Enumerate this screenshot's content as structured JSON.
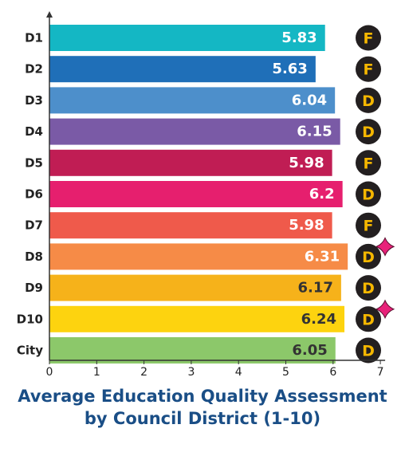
{
  "chart_data": {
    "type": "bar",
    "orientation": "horizontal",
    "title": "Average Education Quality Assessment\nby Council District (1-10)",
    "categories": [
      "D1",
      "D2",
      "D3",
      "D4",
      "D5",
      "D6",
      "D7",
      "D8",
      "D9",
      "D10",
      "City"
    ],
    "values": [
      5.83,
      5.63,
      6.04,
      6.15,
      5.98,
      6.2,
      5.98,
      6.31,
      6.17,
      6.24,
      6.05
    ],
    "value_labels": [
      "5.83",
      "5.63",
      "6.04",
      "6.15",
      "5.98",
      "6.2",
      "5.98",
      "6.31",
      "6.17",
      "6.24",
      "6.05"
    ],
    "grades": [
      "F",
      "F",
      "D",
      "D",
      "F",
      "D",
      "F",
      "D",
      "D",
      "D",
      "D"
    ],
    "highlighted": [
      false,
      false,
      false,
      false,
      false,
      false,
      false,
      true,
      false,
      true,
      false
    ],
    "bar_colors": [
      "#14b7c4",
      "#1f6fb8",
      "#4d8fcb",
      "#7a5aa6",
      "#c01d54",
      "#e61f6e",
      "#ef5a4b",
      "#f68b47",
      "#f6b21a",
      "#fdd30f",
      "#8cc86a"
    ],
    "value_label_colors": [
      "#ffffff",
      "#ffffff",
      "#ffffff",
      "#ffffff",
      "#ffffff",
      "#ffffff",
      "#ffffff",
      "#ffffff",
      "#333333",
      "#333333",
      "#333333"
    ],
    "xlim": [
      0,
      7
    ],
    "xticks": [
      "0",
      "1",
      "2",
      "3",
      "4",
      "5",
      "6",
      "7"
    ],
    "grid": false,
    "grade_badge_color": "#231f20",
    "grade_text_color": "#f6b700",
    "sparkle_color": "#e8227a",
    "title_color": "#1a4e86"
  }
}
